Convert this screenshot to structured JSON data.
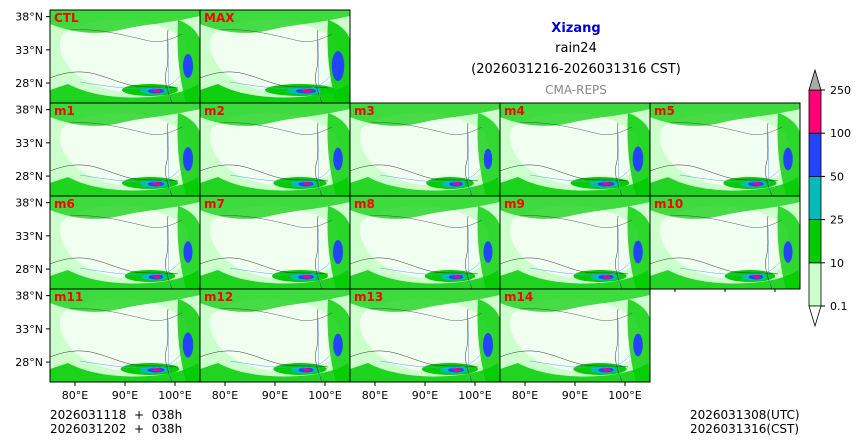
{
  "title": {
    "region": "Xizang",
    "variable": "rain24",
    "period": "(2026031216-2026031316 CST)",
    "source": "CMA-REPS"
  },
  "footer": {
    "init_utc": "2026031118  +  038h",
    "init_cst": "2026031202  +  038h",
    "valid_utc": "2026031308(UTC)",
    "valid_cst": "2026031316(CST)"
  },
  "colors": {
    "title": "#0000cc",
    "panel_label": "#ff0000",
    "subtitle": "#888888",
    "bins": [
      "#ccffcc",
      "#00cc00",
      "#00bbbb",
      "#2244ff",
      "#ff0077",
      "#aaaaaa"
    ]
  },
  "chart_data": {
    "type": "heatmap",
    "panels": [
      {
        "label": "CTL",
        "intensity": 1.0
      },
      {
        "label": "MAX",
        "intensity": 1.25
      },
      {
        "label": "m1",
        "intensity": 1.0
      },
      {
        "label": "m2",
        "intensity": 0.95
      },
      {
        "label": "m3",
        "intensity": 0.85
      },
      {
        "label": "m4",
        "intensity": 1.05
      },
      {
        "label": "m5",
        "intensity": 0.95
      },
      {
        "label": "m6",
        "intensity": 0.9
      },
      {
        "label": "m7",
        "intensity": 1.0
      },
      {
        "label": "m8",
        "intensity": 0.9
      },
      {
        "label": "m9",
        "intensity": 0.95
      },
      {
        "label": "m10",
        "intensity": 0.9
      },
      {
        "label": "m11",
        "intensity": 1.05
      },
      {
        "label": "m12",
        "intensity": 0.95
      },
      {
        "label": "m13",
        "intensity": 1.0
      },
      {
        "label": "m14",
        "intensity": 0.95
      }
    ],
    "lon_range": [
      75,
      105
    ],
    "lat_range": [
      25,
      39
    ],
    "x_ticks": [
      80,
      90,
      100
    ],
    "x_tick_labels": [
      "80°E",
      "90°E",
      "100°E"
    ],
    "y_ticks": [
      38,
      33,
      28
    ],
    "y_tick_labels": [
      "38°N",
      "33°N",
      "28°N"
    ],
    "colorbar": {
      "levels": [
        0.1,
        10,
        25,
        50,
        100,
        250
      ],
      "level_labels": [
        "0.1",
        "10",
        "25",
        "50",
        "100",
        "250"
      ],
      "extend": "both"
    }
  }
}
